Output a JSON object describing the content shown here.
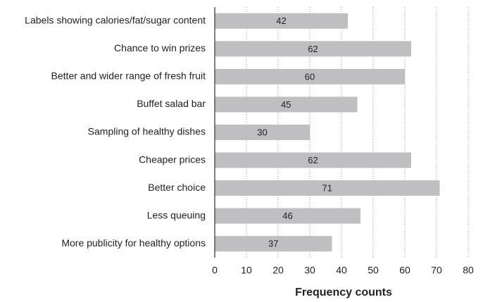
{
  "chart_data": {
    "type": "bar",
    "orientation": "horizontal",
    "categories": [
      "Labels showing calories/fat/sugar content",
      "Chance to win prizes",
      "Better and wider range of fresh fruit",
      "Buffet salad bar",
      "Sampling of healthy dishes",
      "Cheaper prices",
      "Better choice",
      "Less queuing",
      "More publicity for healthy options"
    ],
    "values": [
      42,
      62,
      60,
      45,
      30,
      62,
      71,
      46,
      37
    ],
    "color": "#bfbfc1",
    "x_label": "Frequency counts",
    "xlim": [
      0,
      80
    ],
    "xticks": [
      0,
      10,
      20,
      30,
      40,
      50,
      60,
      70,
      80
    ],
    "grid": true
  }
}
